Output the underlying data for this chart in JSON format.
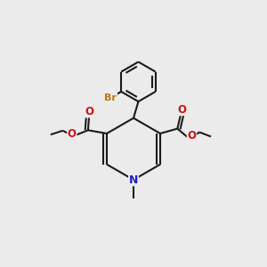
{
  "background_color": "#ebebeb",
  "line_color": "#1a1a1a",
  "nitrogen_color": "#2020cc",
  "oxygen_color": "#cc1111",
  "bromine_color": "#bb7700",
  "lw": 1.5,
  "figsize": [
    3.0,
    3.0
  ],
  "dpi": 100,
  "xlim": [
    -1,
    11
  ],
  "ylim": [
    -1,
    11
  ]
}
